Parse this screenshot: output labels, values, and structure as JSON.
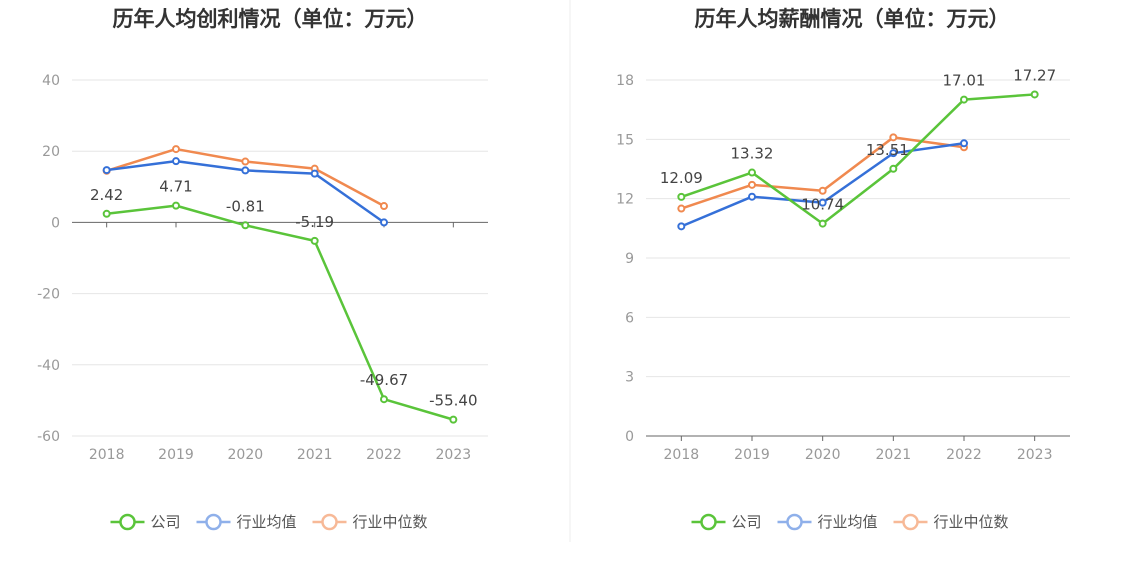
{
  "chart_data": [
    {
      "type": "line",
      "title": "历年人均创利情况（单位：万元）",
      "categories": [
        "2018",
        "2019",
        "2020",
        "2021",
        "2022",
        "2023"
      ],
      "ylim": [
        -60,
        40
      ],
      "yticks": [
        40,
        20,
        0,
        -20,
        -40,
        -60
      ],
      "grid": true,
      "legend_position": "bottom",
      "series": [
        {
          "name": "公司",
          "color": "#5ac43a",
          "values": [
            2.42,
            4.71,
            -0.81,
            -5.19,
            -49.67,
            -55.4
          ],
          "labels": [
            "2.42",
            "4.71",
            "-0.81",
            "-5.19",
            "-49.67",
            "-55.40"
          ]
        },
        {
          "name": "行业均值",
          "color": "#3570d8",
          "legend_color": "#8fb0ea",
          "values": [
            14.7,
            17.2,
            14.6,
            13.7,
            0.0,
            null
          ]
        },
        {
          "name": "行业中位数",
          "color": "#f0894f",
          "legend_color": "#f7b997",
          "values": [
            14.5,
            20.6,
            17.1,
            15.1,
            4.6,
            null
          ]
        }
      ]
    },
    {
      "type": "line",
      "title": "历年人均薪酬情况（单位：万元）",
      "categories": [
        "2018",
        "2019",
        "2020",
        "2021",
        "2022",
        "2023"
      ],
      "ylim": [
        0,
        18
      ],
      "yticks": [
        18,
        15,
        12,
        9,
        6,
        3,
        0
      ],
      "grid": true,
      "legend_position": "bottom",
      "series": [
        {
          "name": "公司",
          "color": "#5ac43a",
          "values": [
            12.09,
            13.32,
            10.74,
            13.51,
            17.01,
            17.27
          ],
          "labels": [
            "12.09",
            "13.32",
            "10.74",
            "13.51",
            "17.01",
            "17.27"
          ]
        },
        {
          "name": "行业均值",
          "color": "#3570d8",
          "legend_color": "#8fb0ea",
          "values": [
            10.6,
            12.1,
            11.8,
            14.3,
            14.8,
            null
          ]
        },
        {
          "name": "行业中位数",
          "color": "#f0894f",
          "legend_color": "#f7b997",
          "values": [
            11.5,
            12.7,
            12.4,
            15.1,
            14.6,
            null
          ]
        }
      ]
    }
  ]
}
